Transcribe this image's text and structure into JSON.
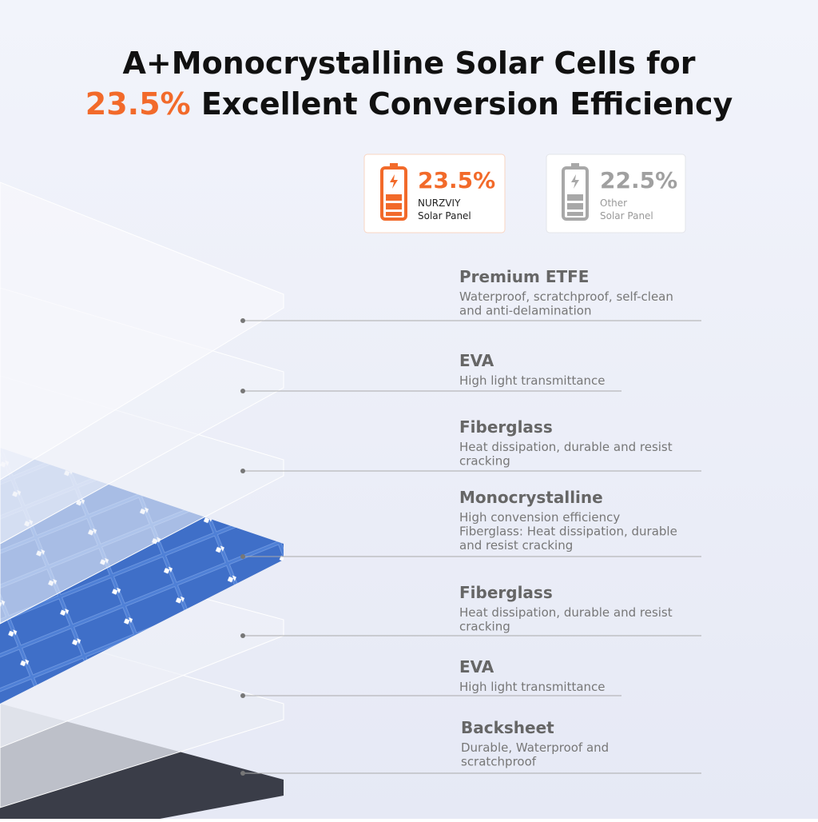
{
  "header": {
    "line1": "A+Monocrystalline Solar Cells for",
    "highlight": "23.5%",
    "line2": "Excellent Conversion Efficiency"
  },
  "comparison": [
    {
      "value": "23.5%",
      "brand": "NURZVIY",
      "label": "Solar Panel"
    },
    {
      "value": "22.5%",
      "brand": "Other",
      "label": "Solar Panel"
    }
  ],
  "layers": [
    {
      "title": "Premium ETFE",
      "description": [
        "Waterproof, scratchproof, self-clean",
        "and anti-delamination"
      ]
    },
    {
      "title": "EVA",
      "description": [
        "High light transmittance"
      ]
    },
    {
      "title": "Fiberglass",
      "description": [
        "Heat dissipation, durable and resist",
        "cracking"
      ]
    },
    {
      "title": "Monocrystalline",
      "description": [
        "High convension efficiency",
        "Fiberglass: Heat dissipation, durable",
        "and resist cracking"
      ]
    },
    {
      "title": "Fiberglass",
      "description": [
        "Heat dissipation, durable and resist",
        "cracking"
      ]
    },
    {
      "title": "EVA",
      "description": [
        "High light transmittance"
      ]
    },
    {
      "title": "Backsheet",
      "description": [
        "Durable, Waterproof and",
        "scratchproof"
      ]
    }
  ]
}
